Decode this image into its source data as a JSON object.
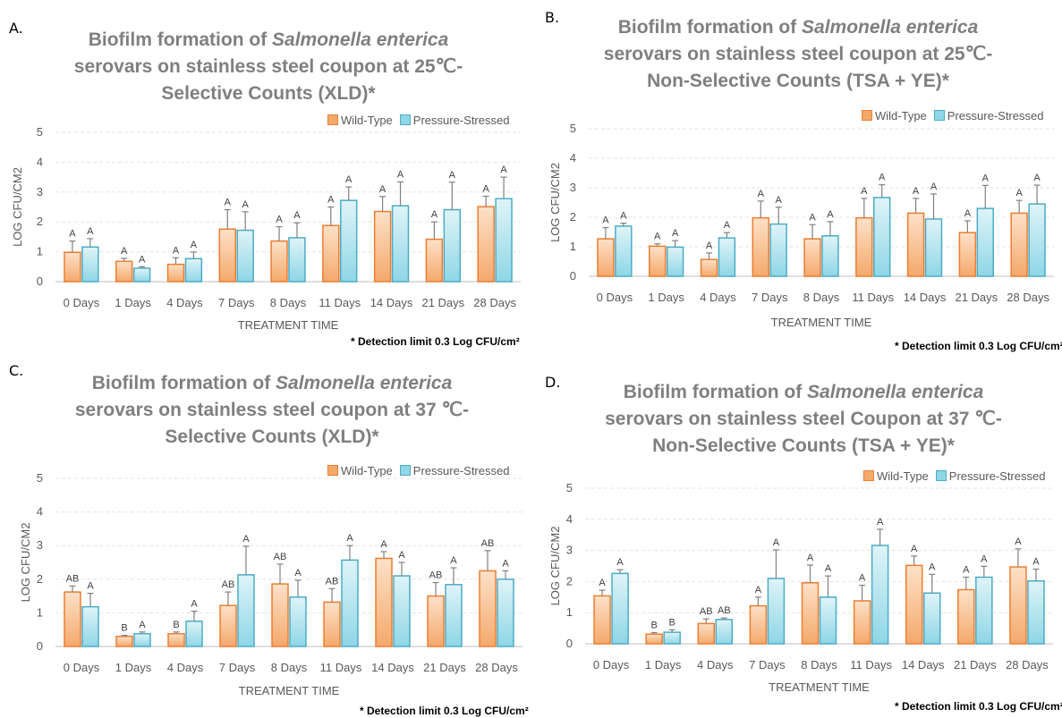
{
  "colors": {
    "wild_fill_top": "#fde1c8",
    "wild_fill_bottom": "#f4a96c",
    "wild_stroke": "#ed7d31",
    "ps_fill_top": "#dff4f8",
    "ps_fill_bottom": "#8fd6e6",
    "ps_stroke": "#4bacc6",
    "error": "#808080",
    "title": "#7f7f7f"
  },
  "chart_data": [
    {
      "panel": "A.",
      "type": "bar",
      "title_parts": [
        "Biofilm formation of ",
        "Salmonella enterica",
        "serovars on stainless steel coupon at 25℃-",
        "Selective Counts (XLD)*"
      ],
      "xlabel": "TREATMENT TIME",
      "ylabel": "LOG CFU/CM2",
      "ylim": [
        0,
        5
      ],
      "yticks": [
        "0",
        "1",
        "2",
        "3",
        "4",
        "5"
      ],
      "categories": [
        "0 Days",
        "1 Days",
        "4 Days",
        "7 Days",
        "8 Days",
        "11 Days",
        "14 Days",
        "21 Days",
        "28 Days"
      ],
      "series": [
        {
          "name": "Wild-Type",
          "values": [
            0.98,
            0.68,
            0.58,
            1.76,
            1.36,
            1.88,
            2.35,
            1.42,
            2.51
          ],
          "errors": [
            0.38,
            0.1,
            0.22,
            0.65,
            0.48,
            0.62,
            0.5,
            0.58,
            0.35
          ],
          "labels": [
            "A",
            "A",
            "A",
            "A",
            "A",
            "A",
            "A",
            "A",
            "A"
          ]
        },
        {
          "name": "Pressure-Stressed",
          "values": [
            1.16,
            0.45,
            0.77,
            1.72,
            1.47,
            2.72,
            2.54,
            2.41,
            2.78
          ],
          "errors": [
            0.28,
            0.05,
            0.22,
            0.62,
            0.5,
            0.45,
            0.8,
            0.92,
            0.72
          ],
          "labels": [
            "A",
            "A",
            "A",
            "A",
            "A",
            "A",
            "A",
            "A",
            "A"
          ]
        }
      ],
      "note": "* Detection limit 0.3 Log CFU/cm²"
    },
    {
      "panel": "B.",
      "type": "bar",
      "title_parts": [
        "Biofilm formation of ",
        "Salmonella enterica",
        "serovars on stainless steel coupon at 25℃-",
        "Non-Selective  Counts (TSA + YE)*"
      ],
      "xlabel": "TREATMENT TIME",
      "ylabel": "LOG CFU/CM2",
      "ylim": [
        0,
        5
      ],
      "yticks": [
        "0",
        "1",
        "2",
        "3",
        "4",
        "5"
      ],
      "categories": [
        "0 Days",
        "1 Days",
        "4 Days",
        "7 Days",
        "8 Days",
        "11 Days",
        "14 Days",
        "21 Days",
        "28 Days"
      ],
      "series": [
        {
          "name": "Wild-Type",
          "values": [
            1.27,
            1.02,
            0.57,
            1.98,
            1.27,
            1.98,
            2.14,
            1.48,
            2.14
          ],
          "errors": [
            0.38,
            0.08,
            0.22,
            0.57,
            0.48,
            0.66,
            0.5,
            0.4,
            0.43
          ],
          "labels": [
            "A",
            "A",
            "A",
            "A",
            "A",
            "A",
            "A",
            "A",
            "A"
          ]
        },
        {
          "name": "Pressure-Stressed",
          "values": [
            1.7,
            0.99,
            1.3,
            1.77,
            1.37,
            2.67,
            1.94,
            2.3,
            2.45
          ],
          "errors": [
            0.1,
            0.22,
            0.18,
            0.57,
            0.48,
            0.43,
            0.85,
            0.78,
            0.64
          ],
          "labels": [
            "A",
            "A",
            "A",
            "A",
            "A",
            "A",
            "A",
            "A",
            "A"
          ]
        }
      ],
      "note": "* Detection limit 0.3 Log CFU/cm²"
    },
    {
      "panel": "C.",
      "type": "bar",
      "title_parts": [
        "Biofilm formation of ",
        "Salmonella enterica",
        "serovars on stainless steel coupon at 37 ℃-",
        "Selective Counts (XLD)*"
      ],
      "xlabel": "TREATMENT TIME",
      "ylabel": "LOG CFU/CM2",
      "ylim": [
        0,
        5
      ],
      "yticks": [
        "0",
        "1",
        "2",
        "3",
        "4",
        "5"
      ],
      "categories": [
        "0 Days",
        "1 Days",
        "4 Days",
        "7 Days",
        "8 Days",
        "11 Days",
        "14 Days",
        "21 Days",
        "28 Days"
      ],
      "series": [
        {
          "name": "Wild-Type",
          "values": [
            1.62,
            0.3,
            0.38,
            1.22,
            1.86,
            1.32,
            2.62,
            1.5,
            2.25
          ],
          "errors": [
            0.18,
            0.03,
            0.05,
            0.4,
            0.59,
            0.4,
            0.2,
            0.4,
            0.6
          ],
          "labels": [
            "AB",
            "B",
            "B",
            "AB",
            "AB",
            "AB",
            "A",
            "AB",
            "AB"
          ]
        },
        {
          "name": "Pressure-Stressed",
          "values": [
            1.18,
            0.38,
            0.75,
            2.13,
            1.47,
            2.57,
            2.1,
            1.84,
            2.0
          ],
          "errors": [
            0.4,
            0.05,
            0.3,
            0.85,
            0.5,
            0.43,
            0.4,
            0.5,
            0.25
          ],
          "labels": [
            "A",
            "A",
            "A",
            "A",
            "A",
            "A",
            "A",
            "A",
            "A"
          ]
        }
      ],
      "note": "* Detection limit 0.3 Log CFU/cm²"
    },
    {
      "panel": "D.",
      "type": "bar",
      "title_parts": [
        "Biofilm formation of ",
        "Salmonella enterica",
        "serovars on stainless steel Coupon at 37 ℃-",
        "Non-Selective  Counts (TSA + YE)*"
      ],
      "xlabel": "TREATMENT TIME",
      "ylabel": "LOG CFU/CM2",
      "ylim": [
        0,
        5
      ],
      "yticks": [
        "0",
        "1",
        "2",
        "3",
        "4",
        "5"
      ],
      "categories": [
        "0 Days",
        "1 Days",
        "4 Days",
        "7 Days",
        "8 Days",
        "11 Days",
        "14 Days",
        "21 Days",
        "28 Days"
      ],
      "series": [
        {
          "name": "Wild-Type",
          "values": [
            1.54,
            0.31,
            0.65,
            1.22,
            1.96,
            1.38,
            2.52,
            1.74,
            2.47
          ],
          "errors": [
            0.18,
            0.05,
            0.15,
            0.28,
            0.57,
            0.5,
            0.3,
            0.4,
            0.58
          ],
          "labels": [
            "A",
            "B",
            "AB",
            "A",
            "A",
            "A",
            "A",
            "A",
            "A"
          ]
        },
        {
          "name": "Pressure-Stressed",
          "values": [
            2.26,
            0.37,
            0.78,
            2.1,
            1.5,
            3.16,
            1.63,
            2.14,
            2.02
          ],
          "errors": [
            0.12,
            0.08,
            0.05,
            0.92,
            0.68,
            0.52,
            0.6,
            0.35,
            0.38
          ],
          "labels": [
            "A",
            "B",
            "AB",
            "A",
            "A",
            "A",
            "A",
            "A",
            "A"
          ]
        }
      ],
      "note": "* Detection limit 0.3 Log CFU/cm²"
    }
  ]
}
